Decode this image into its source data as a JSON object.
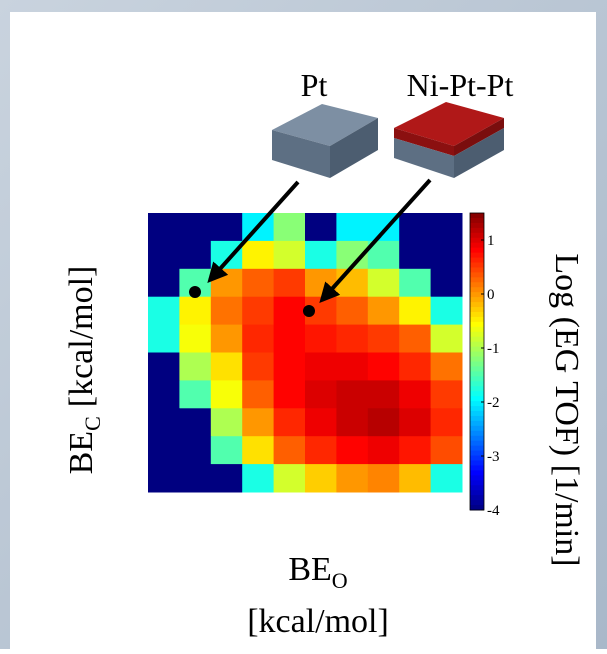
{
  "chart_data": {
    "type": "heatmap",
    "annotations": [
      "Pt",
      "Ni-Pt-Pt"
    ],
    "ylabel": {
      "main": "BE",
      "sub": "C",
      "unit": "[kcal/mol]"
    },
    "xlabel": {
      "main": "BE",
      "sub": "O",
      "unit": "[kcal/mol]"
    },
    "colorbar_label": "Log (EG TOF) [1/min]",
    "colormap": "jet",
    "colorbar_lim": [
      -4,
      1.5
    ],
    "colorbar_ticks": [
      1,
      0,
      -1,
      -2,
      -3,
      -4
    ],
    "z": [
      [
        -4,
        -4,
        -4,
        -2,
        -1.2,
        -4,
        -2,
        -2,
        -4,
        -4
      ],
      [
        -4,
        -4,
        -1.8,
        -0.5,
        -0.8,
        -1.8,
        -1.2,
        -1.5,
        -4,
        -4
      ],
      [
        -4,
        -1.5,
        0,
        0.3,
        0.5,
        0,
        -0.2,
        -0.8,
        -1.5,
        -4
      ],
      [
        -1.8,
        -0.5,
        0.2,
        0.5,
        0.8,
        0.5,
        0.3,
        0,
        -0.5,
        -1.8
      ],
      [
        -1.8,
        -0.6,
        0,
        0.6,
        0.8,
        0.7,
        0.6,
        0.5,
        0.3,
        -0.8
      ],
      [
        -4,
        -1,
        -0.4,
        0.5,
        0.8,
        0.9,
        0.9,
        0.8,
        0.6,
        0.2
      ],
      [
        -4,
        -1.5,
        -0.6,
        0.3,
        0.8,
        1,
        1.1,
        1.1,
        0.9,
        0.5
      ],
      [
        -4,
        -4,
        -1,
        0,
        0.6,
        0.9,
        1.1,
        1.2,
        1,
        0.6
      ],
      [
        -4,
        -4,
        -1.5,
        -0.4,
        0.3,
        0.6,
        0.8,
        0.9,
        0.7,
        0.4
      ],
      [
        -4,
        -4,
        -4,
        -1.8,
        -0.8,
        -0.3,
        0,
        0.1,
        -0.2,
        -1.8
      ]
    ]
  }
}
